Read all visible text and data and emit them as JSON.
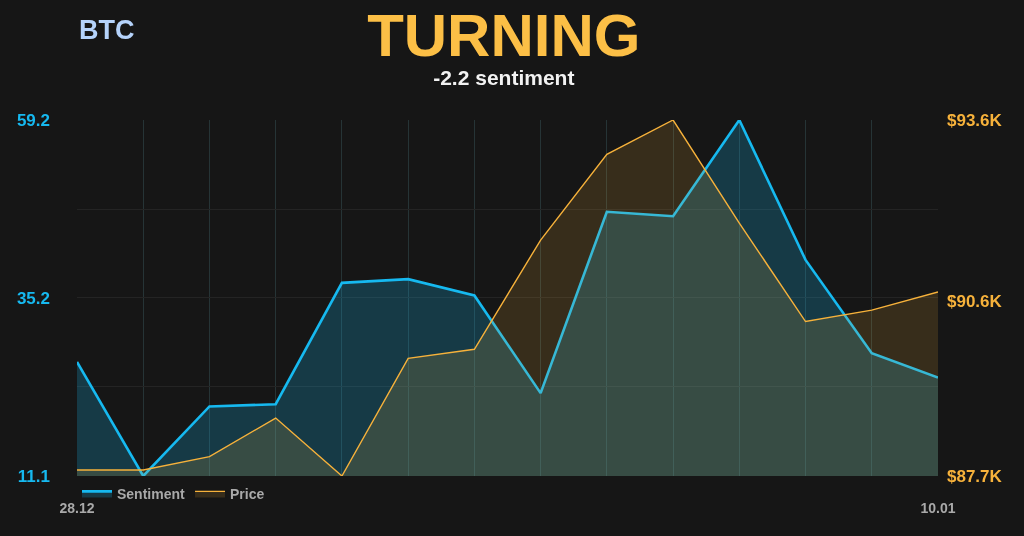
{
  "chart_data": {
    "type": "area",
    "title": "TURNING",
    "subtitle": "-2.2 sentiment",
    "annotations": [
      "BTC"
    ],
    "categories": [
      "28.12",
      null,
      null,
      null,
      null,
      null,
      null,
      null,
      null,
      null,
      null,
      null,
      null,
      "10.01"
    ],
    "series": [
      {
        "name": "Sentiment",
        "color": "#16b9f0",
        "values": [
          26.5,
          11.1,
          20.5,
          20.8,
          37.2,
          37.7,
          35.5,
          22.3,
          46.8,
          46.2,
          59.2,
          40.3,
          27.7,
          24.4
        ]
      },
      {
        "name": "Price",
        "color": "#f7b23b",
        "axis": "y2",
        "values": [
          87.8,
          87.8,
          88.02,
          88.66,
          87.7,
          89.65,
          89.8,
          91.61,
          93.03,
          93.6,
          91.89,
          90.26,
          90.45,
          90.75
        ]
      }
    ],
    "ylim": [
      11.1,
      59.2
    ],
    "yticks": [
      11.1,
      {
        "value": 23.15,
        "label": null
      },
      35.2,
      {
        "value": 47.15,
        "label": null
      },
      59.2
    ],
    "y2lim": [
      87.7,
      93.6
    ],
    "y2ticks": [
      {
        "value": 87.7,
        "label": "$87.7K"
      },
      {
        "value": 90.6,
        "label": "$90.6K"
      },
      {
        "value": 93.6,
        "label": "$93.6K"
      }
    ],
    "grid": true,
    "legend": "bottom left"
  }
}
